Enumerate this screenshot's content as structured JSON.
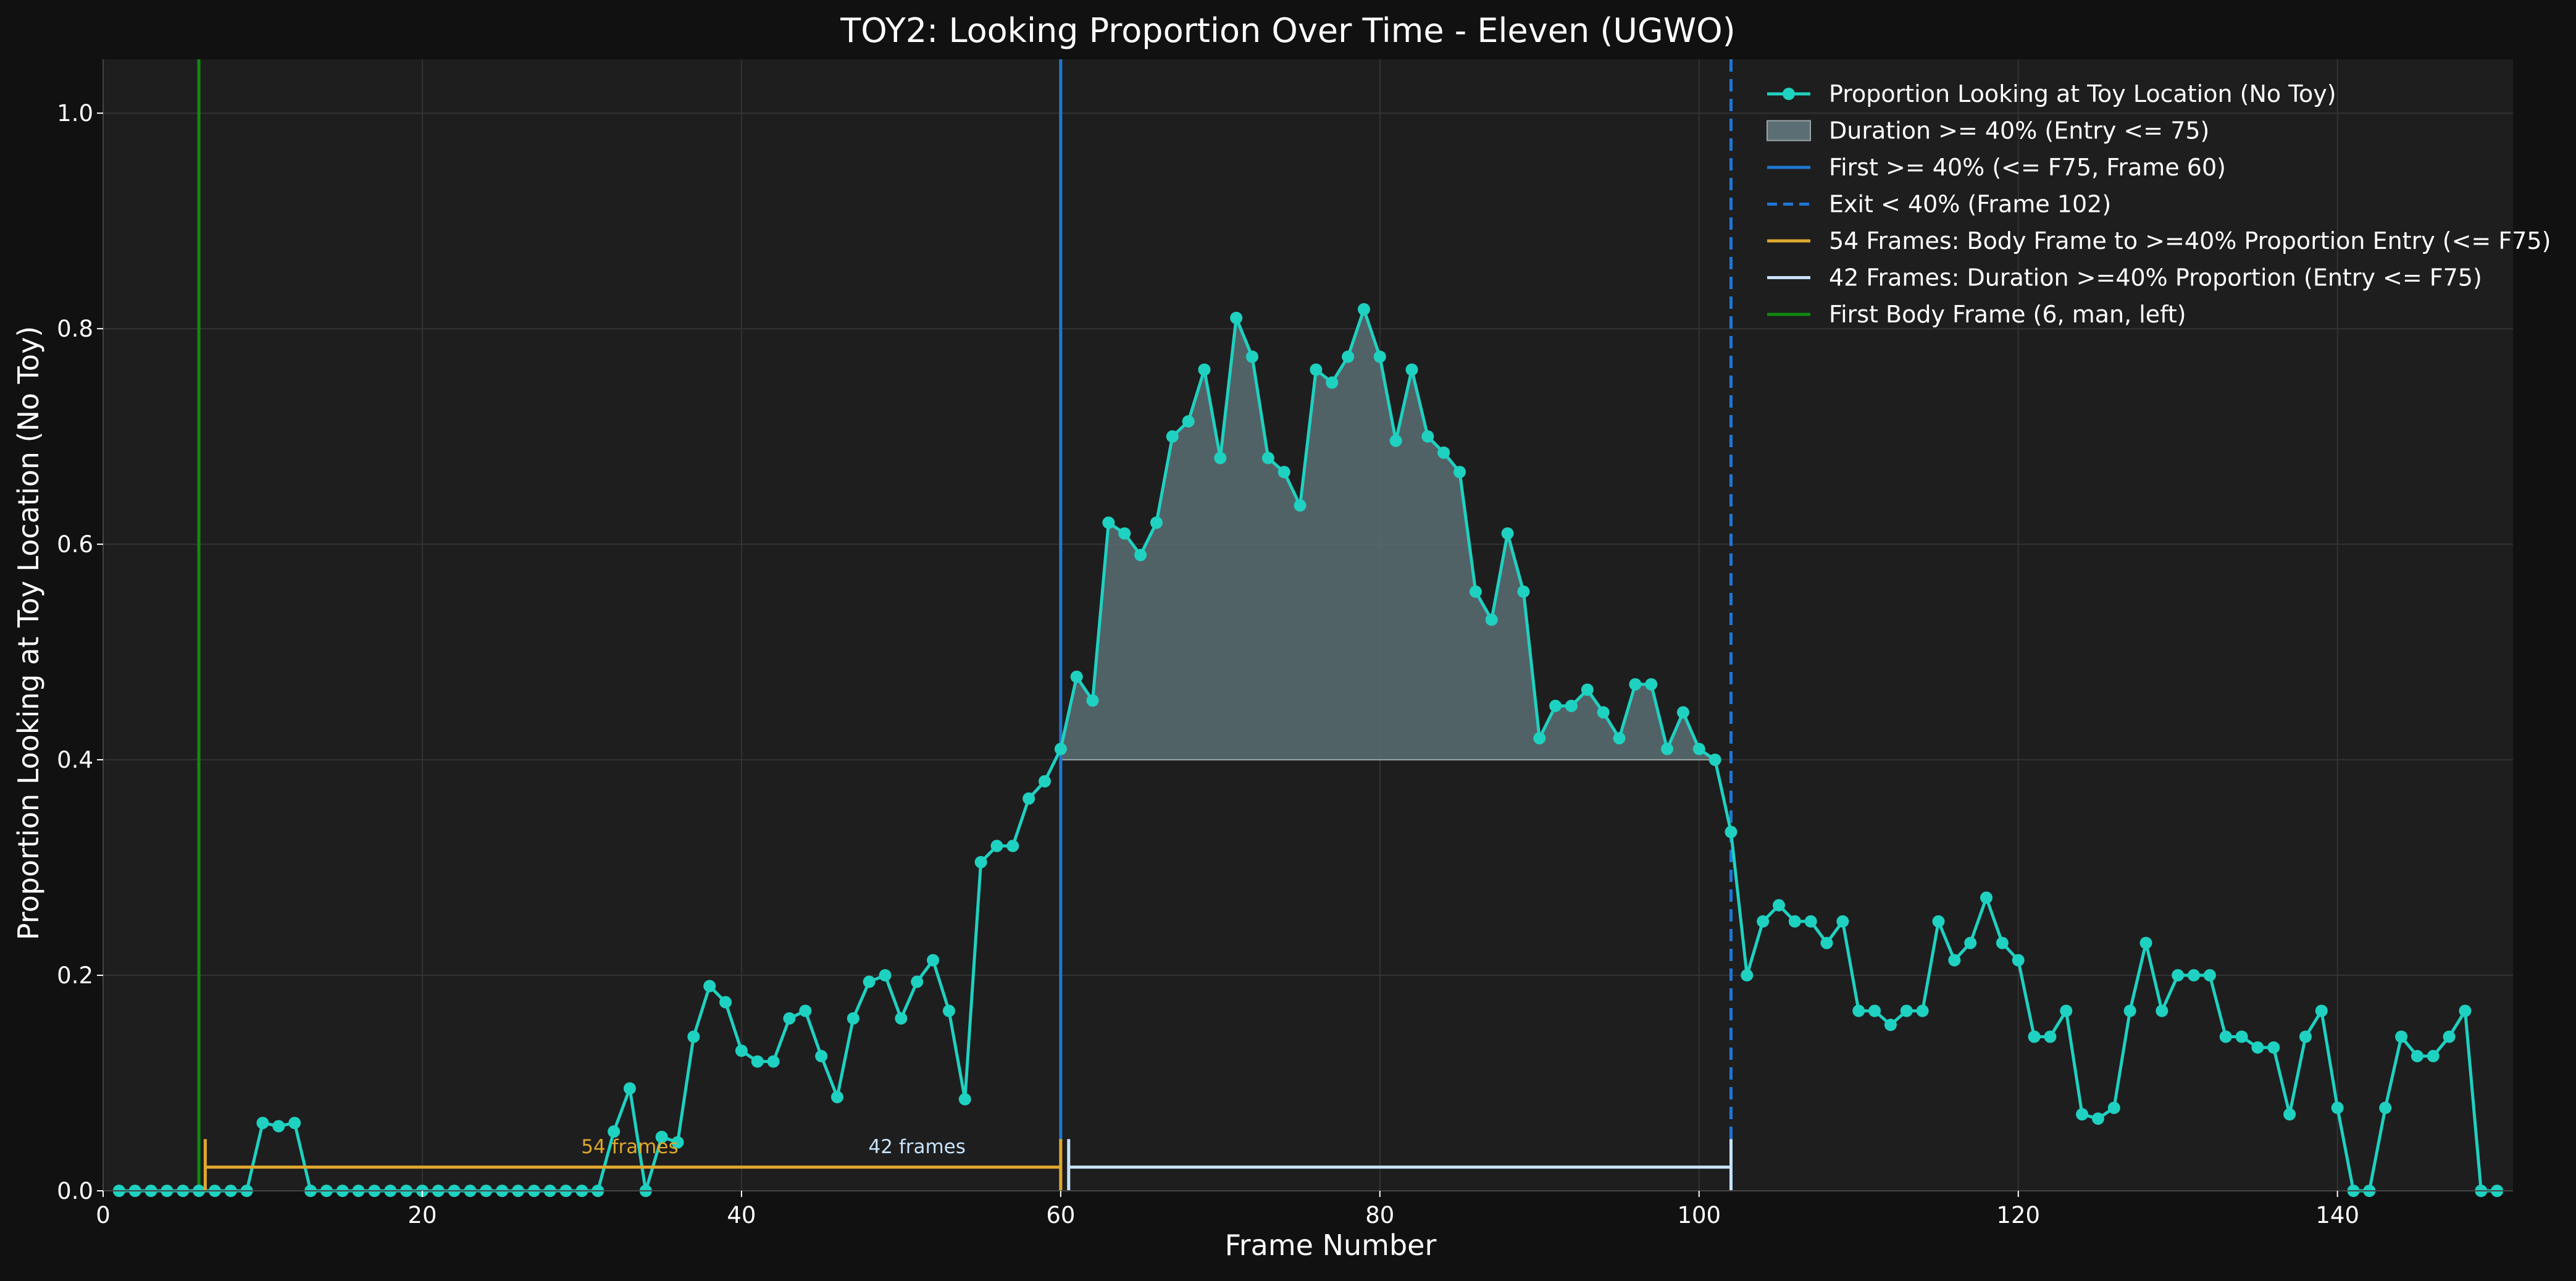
{
  "chart_data": {
    "type": "line",
    "title": "TOY2: Looking Proportion Over Time - Eleven (UGWO)",
    "xlabel": "Frame Number",
    "ylabel": "Proportion Looking at Toy Location (No Toy)",
    "xlim": [
      0,
      151
    ],
    "ylim": [
      0,
      1.05
    ],
    "x_ticks": [
      0,
      20,
      40,
      60,
      80,
      100,
      120,
      140
    ],
    "y_ticks": [
      0.0,
      0.2,
      0.4,
      0.6,
      0.8,
      1.0
    ],
    "x_tick_labels": [
      "0",
      "20",
      "40",
      "60",
      "80",
      "100",
      "120",
      "140"
    ],
    "y_tick_labels": [
      "0.0",
      "0.2",
      "0.4",
      "0.6",
      "0.8",
      "1.0"
    ],
    "grid": true,
    "legend_position": "top-right",
    "colors": {
      "background": "#111111",
      "axes_background": "#1e1e1e",
      "grid": "#333333",
      "series": "#1fd1c1",
      "fill": "#5a6e73",
      "first_line": "#1f77d4",
      "exit_line": "#1f77d4",
      "body_frame_line": "#0f8a0f",
      "bracket_54": "#e0a82e",
      "bracket_42": "#c7e3fb",
      "text": "#ffffff"
    },
    "series": [
      {
        "name": "Proportion Looking at Toy Location (No Toy)",
        "x": [
          1,
          2,
          3,
          4,
          5,
          6,
          7,
          8,
          9,
          10,
          11,
          12,
          13,
          14,
          15,
          16,
          17,
          18,
          19,
          20,
          21,
          22,
          23,
          24,
          25,
          26,
          27,
          28,
          29,
          30,
          31,
          32,
          33,
          34,
          35,
          36,
          37,
          38,
          39,
          40,
          41,
          42,
          43,
          44,
          45,
          46,
          47,
          48,
          49,
          50,
          51,
          52,
          53,
          54,
          55,
          56,
          57,
          58,
          59,
          60,
          61,
          62,
          63,
          64,
          65,
          66,
          67,
          68,
          69,
          70,
          71,
          72,
          73,
          74,
          75,
          76,
          77,
          78,
          79,
          80,
          81,
          82,
          83,
          84,
          85,
          86,
          87,
          88,
          89,
          90,
          91,
          92,
          93,
          94,
          95,
          96,
          97,
          98,
          99,
          100,
          101,
          102,
          103,
          104,
          105,
          106,
          107,
          108,
          109,
          110,
          111,
          112,
          113,
          114,
          115,
          116,
          117,
          118,
          119,
          120,
          121,
          122,
          123,
          124,
          125,
          126,
          127,
          128,
          129,
          130,
          131,
          132,
          133,
          134,
          135,
          136,
          137,
          138,
          139,
          140,
          141,
          142,
          143,
          144,
          145,
          146,
          147,
          148,
          149,
          150
        ],
        "y": [
          0,
          0,
          0,
          0,
          0,
          0,
          0,
          0,
          0,
          0.063,
          0.06,
          0.063,
          0,
          0,
          0,
          0,
          0,
          0,
          0,
          0,
          0,
          0,
          0,
          0,
          0,
          0,
          0,
          0,
          0,
          0,
          0,
          0.055,
          0.095,
          0,
          0.05,
          0.045,
          0.143,
          0.19,
          0.175,
          0.13,
          0.12,
          0.12,
          0.16,
          0.167,
          0.125,
          0.087,
          0.16,
          0.194,
          0.2,
          0.16,
          0.194,
          0.214,
          0.167,
          0.085,
          0.305,
          0.32,
          0.32,
          0.364,
          0.38,
          0.41,
          0.477,
          0.455,
          0.62,
          0.61,
          0.59,
          0.62,
          0.7,
          0.714,
          0.762,
          0.68,
          0.81,
          0.774,
          0.68,
          0.667,
          0.636,
          0.762,
          0.75,
          0.774,
          0.818,
          0.774,
          0.696,
          0.762,
          0.7,
          0.685,
          0.667,
          0.556,
          0.53,
          0.61,
          0.556,
          0.42,
          0.45,
          0.45,
          0.465,
          0.444,
          0.42,
          0.47,
          0.47,
          0.41,
          0.444,
          0.41,
          0.4,
          0.333,
          0.2,
          0.25,
          0.265,
          0.25,
          0.25,
          0.23,
          0.25,
          0.167,
          0.167,
          0.154,
          0.167,
          0.167,
          0.25,
          0.214,
          0.23,
          0.272,
          0.23,
          0.214,
          0.143,
          0.143,
          0.167,
          0.071,
          0.067,
          0.077,
          0.167,
          0.23,
          0.167,
          0.2,
          0.2,
          0.2,
          0.143,
          0.143,
          0.133,
          0.133,
          0.071,
          0.143,
          0.167,
          0.077,
          0,
          0,
          0.077,
          0.143,
          0.125,
          0.125,
          0.143,
          0.167,
          0,
          0
        ]
      }
    ],
    "threshold": 0.4,
    "fill_region": {
      "name": "Duration >= 40% (Entry <= 75)",
      "x_start": 60,
      "x_end": 101
    },
    "vlines": [
      {
        "name": "First >= 40% (<= F75, Frame 60)",
        "x": 60,
        "style": "solid"
      },
      {
        "name": "Exit < 40% (Frame 102)",
        "x": 102,
        "style": "dashed"
      },
      {
        "name": "First Body Frame (6, man, left)",
        "x": 6,
        "style": "solid"
      }
    ],
    "brackets": [
      {
        "name": "54 Frames: Body Frame to >=40% Proportion Entry (<= F75)",
        "x_start": 6.4,
        "x_end": 60,
        "y": 0.022,
        "label": "54 frames",
        "label_x": 33
      },
      {
        "name": "42 Frames: Duration >=40% Proportion (Entry <= F75)",
        "x_start": 60.5,
        "x_end": 102,
        "y": 0.022,
        "label": "42 frames",
        "label_x": 51
      }
    ],
    "legend": [
      "Proportion Looking at Toy Location (No Toy)",
      "Duration >= 40% (Entry <= 75)",
      "First >= 40% (<= F75, Frame 60)",
      "Exit < 40% (Frame 102)",
      "54 Frames: Body Frame to >=40% Proportion Entry (<= F75)",
      "42 Frames: Duration >=40% Proportion (Entry <= F75)",
      "First Body Frame (6, man, left)"
    ]
  }
}
